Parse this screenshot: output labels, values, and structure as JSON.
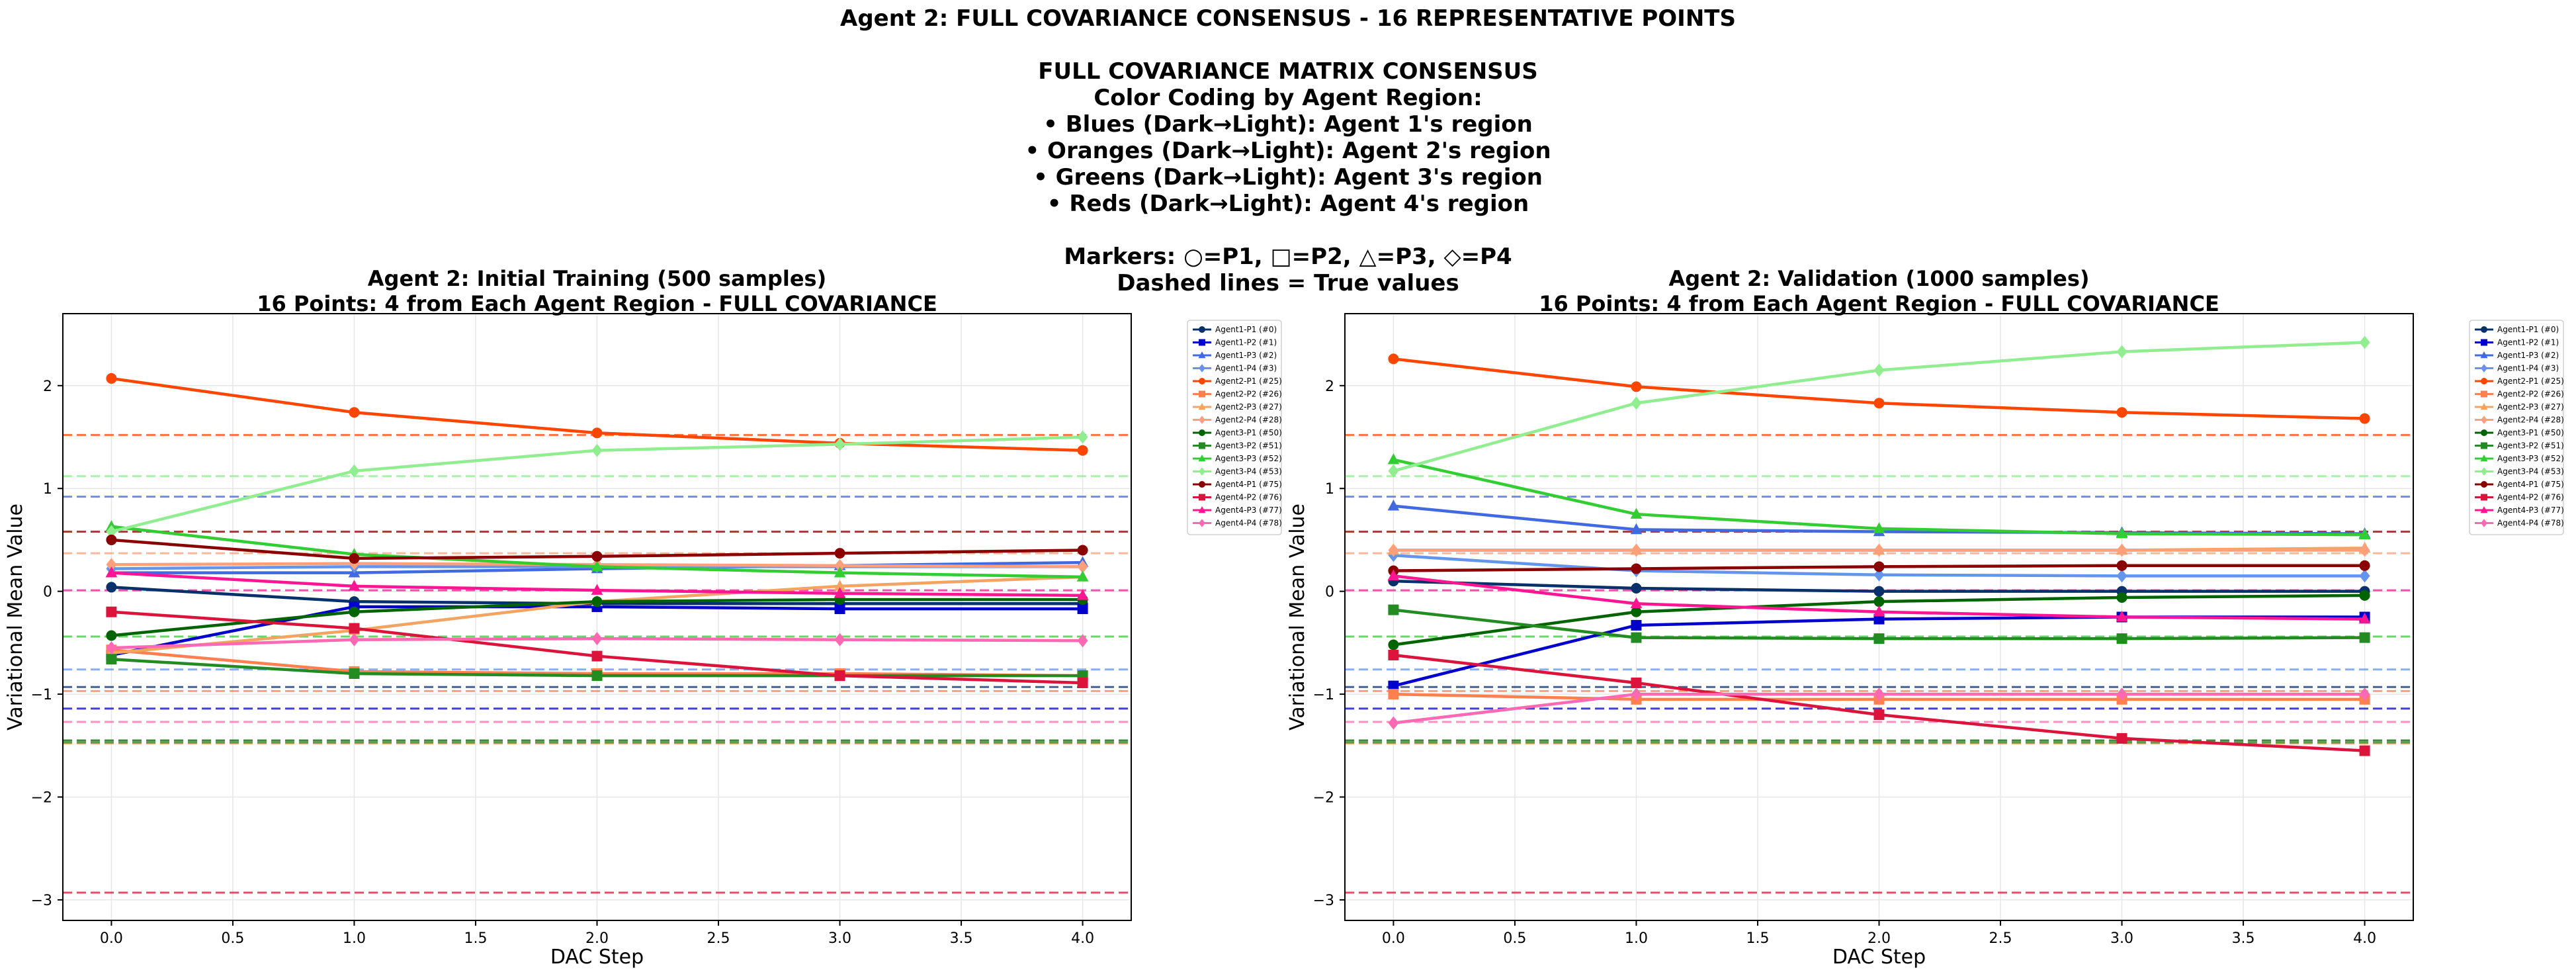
{
  "suptitle": [
    "Agent 2: FULL COVARIANCE CONSENSUS - 16 REPRESENTATIVE POINTS",
    "",
    "FULL COVARIANCE MATRIX CONSENSUS",
    "Color Coding by Agent Region:",
    "• Blues (Dark→Light): Agent 1's region",
    "• Oranges (Dark→Light): Agent 2's region",
    "• Greens (Dark→Light): Agent 3's region",
    "• Reds (Dark→Light): Agent 4's region",
    "",
    "Markers: ○=P1, □=P2, △=P3, ◇=P4",
    "Dashed lines = True values"
  ],
  "series_styles": [
    {
      "name": "Agent1-P1 (#0)",
      "color": "#08306b",
      "marker": "circle"
    },
    {
      "name": "Agent1-P2 (#1)",
      "color": "#0000cd",
      "marker": "square"
    },
    {
      "name": "Agent1-P3 (#2)",
      "color": "#4169e1",
      "marker": "triangle"
    },
    {
      "name": "Agent1-P4 (#3)",
      "color": "#6495ed",
      "marker": "diamond"
    },
    {
      "name": "Agent2-P1 (#25)",
      "color": "#ff4500",
      "marker": "circle"
    },
    {
      "name": "Agent2-P2 (#26)",
      "color": "#ff7f50",
      "marker": "square"
    },
    {
      "name": "Agent2-P3 (#27)",
      "color": "#f4a460",
      "marker": "triangle"
    },
    {
      "name": "Agent2-P4 (#28)",
      "color": "#ffa07a",
      "marker": "diamond"
    },
    {
      "name": "Agent3-P1 (#50)",
      "color": "#006400",
      "marker": "circle"
    },
    {
      "name": "Agent3-P2 (#51)",
      "color": "#228b22",
      "marker": "square"
    },
    {
      "name": "Agent3-P3 (#52)",
      "color": "#32cd32",
      "marker": "triangle"
    },
    {
      "name": "Agent3-P4 (#53)",
      "color": "#90ee90",
      "marker": "diamond"
    },
    {
      "name": "Agent4-P1 (#75)",
      "color": "#8b0000",
      "marker": "circle"
    },
    {
      "name": "Agent4-P2 (#76)",
      "color": "#dc143c",
      "marker": "square"
    },
    {
      "name": "Agent4-P3 (#77)",
      "color": "#ff1493",
      "marker": "triangle"
    },
    {
      "name": "Agent4-P4 (#78)",
      "color": "#ff69b4",
      "marker": "diamond"
    }
  ],
  "chart_data": [
    {
      "type": "line",
      "title": [
        "Agent 2: Initial Training (500 samples)",
        "16 Points: 4 from Each Agent Region - FULL COVARIANCE"
      ],
      "xlabel": "DAC Step",
      "ylabel": "Variational Mean Value",
      "xlim": [
        -0.2,
        4.2
      ],
      "ylim": [
        -3.2,
        2.7
      ],
      "xticks": [
        0.0,
        0.5,
        1.0,
        1.5,
        2.0,
        2.5,
        3.0,
        3.5,
        4.0
      ],
      "xtick_labels": [
        "0.0",
        "0.5",
        "1.0",
        "1.5",
        "2.0",
        "2.5",
        "3.0",
        "3.5",
        "4.0"
      ],
      "yticks": [
        -3,
        -2,
        -1,
        0,
        1,
        2
      ],
      "ytick_labels": [
        "−3",
        "−2",
        "−1",
        "0",
        "1",
        "2"
      ],
      "grid": true,
      "legend": "outside-right",
      "x": [
        0,
        1,
        2,
        3,
        4
      ],
      "series": [
        {
          "name": "Agent1-P1 (#0)",
          "values": [
            0.04,
            -0.1,
            -0.12,
            -0.12,
            -0.12
          ],
          "true_value": -0.93
        },
        {
          "name": "Agent1-P2 (#1)",
          "values": [
            -0.62,
            -0.15,
            -0.15,
            -0.17,
            -0.17
          ],
          "true_value": -1.14
        },
        {
          "name": "Agent1-P3 (#2)",
          "values": [
            0.18,
            0.18,
            0.22,
            0.25,
            0.28
          ],
          "true_value": 0.92
        },
        {
          "name": "Agent1-P4 (#3)",
          "values": [
            0.22,
            0.24,
            0.24,
            0.24,
            0.24
          ],
          "true_value": -0.76
        },
        {
          "name": "Agent2-P1 (#25)",
          "values": [
            2.07,
            1.74,
            1.54,
            1.44,
            1.37
          ],
          "true_value": 1.52
        },
        {
          "name": "Agent2-P2 (#26)",
          "values": [
            -0.57,
            -0.78,
            -0.8,
            -0.8,
            -0.82
          ],
          "true_value": -0.97
        },
        {
          "name": "Agent2-P3 (#27)",
          "values": [
            -0.6,
            -0.38,
            -0.1,
            0.05,
            0.14
          ],
          "true_value": -1.48
        },
        {
          "name": "Agent2-P4 (#28)",
          "values": [
            0.26,
            0.27,
            0.26,
            0.25,
            0.24
          ],
          "true_value": 0.37
        },
        {
          "name": "Agent3-P1 (#50)",
          "values": [
            -0.43,
            -0.2,
            -0.1,
            -0.08,
            -0.08
          ],
          "true_value": -1.45
        },
        {
          "name": "Agent3-P2 (#51)",
          "values": [
            -0.66,
            -0.8,
            -0.82,
            -0.82,
            -0.82
          ],
          "true_value": -1.47
        },
        {
          "name": "Agent3-P3 (#52)",
          "values": [
            0.63,
            0.36,
            0.24,
            0.18,
            0.14
          ],
          "true_value": -0.44
        },
        {
          "name": "Agent3-P4 (#53)",
          "values": [
            0.58,
            1.17,
            1.37,
            1.43,
            1.5
          ],
          "true_value": 1.12
        },
        {
          "name": "Agent4-P1 (#75)",
          "values": [
            0.5,
            0.32,
            0.34,
            0.37,
            0.4
          ],
          "true_value": 0.58
        },
        {
          "name": "Agent4-P2 (#76)",
          "values": [
            -0.2,
            -0.36,
            -0.63,
            -0.82,
            -0.89
          ],
          "true_value": -2.93
        },
        {
          "name": "Agent4-P3 (#77)",
          "values": [
            0.18,
            0.05,
            0.01,
            -0.02,
            -0.04
          ],
          "true_value": 0.01
        },
        {
          "name": "Agent4-P4 (#78)",
          "values": [
            -0.55,
            -0.47,
            -0.46,
            -0.47,
            -0.48
          ],
          "true_value": -1.27
        }
      ]
    },
    {
      "type": "line",
      "title": [
        "Agent 2: Validation (1000 samples)",
        "16 Points: 4 from Each Agent Region - FULL COVARIANCE"
      ],
      "xlabel": "DAC Step",
      "ylabel": "Variational Mean Value",
      "xlim": [
        -0.2,
        4.2
      ],
      "ylim": [
        -3.2,
        2.7
      ],
      "xticks": [
        0.0,
        0.5,
        1.0,
        1.5,
        2.0,
        2.5,
        3.0,
        3.5,
        4.0
      ],
      "xtick_labels": [
        "0.0",
        "0.5",
        "1.0",
        "1.5",
        "2.0",
        "2.5",
        "3.0",
        "3.5",
        "4.0"
      ],
      "yticks": [
        -3,
        -2,
        -1,
        0,
        1,
        2
      ],
      "ytick_labels": [
        "−3",
        "−2",
        "−1",
        "0",
        "1",
        "2"
      ],
      "grid": true,
      "legend": "outside-right",
      "x": [
        0,
        1,
        2,
        3,
        4
      ],
      "series": [
        {
          "name": "Agent1-P1 (#0)",
          "values": [
            0.1,
            0.03,
            0.0,
            0.0,
            0.0
          ],
          "true_value": -0.93
        },
        {
          "name": "Agent1-P2 (#1)",
          "values": [
            -0.92,
            -0.33,
            -0.27,
            -0.25,
            -0.25
          ],
          "true_value": -1.14
        },
        {
          "name": "Agent1-P3 (#2)",
          "values": [
            0.83,
            0.6,
            0.58,
            0.57,
            0.56
          ],
          "true_value": 0.92
        },
        {
          "name": "Agent1-P4 (#3)",
          "values": [
            0.35,
            0.2,
            0.16,
            0.15,
            0.15
          ],
          "true_value": -0.76
        },
        {
          "name": "Agent2-P1 (#25)",
          "values": [
            2.26,
            1.99,
            1.83,
            1.74,
            1.68
          ],
          "true_value": 1.52
        },
        {
          "name": "Agent2-P2 (#26)",
          "values": [
            -1.0,
            -1.05,
            -1.05,
            -1.05,
            -1.05
          ],
          "true_value": -0.97
        },
        {
          "name": "Agent2-P3 (#27)",
          "values": [
            0.4,
            0.4,
            0.4,
            0.4,
            0.42
          ],
          "true_value": -1.48
        },
        {
          "name": "Agent2-P4 (#28)",
          "values": [
            0.4,
            0.4,
            0.4,
            0.4,
            0.4
          ],
          "true_value": 0.37
        },
        {
          "name": "Agent3-P1 (#50)",
          "values": [
            -0.52,
            -0.2,
            -0.1,
            -0.06,
            -0.04
          ],
          "true_value": -1.45
        },
        {
          "name": "Agent3-P2 (#51)",
          "values": [
            -0.18,
            -0.45,
            -0.46,
            -0.46,
            -0.45
          ],
          "true_value": -1.47
        },
        {
          "name": "Agent3-P3 (#52)",
          "values": [
            1.28,
            0.75,
            0.61,
            0.56,
            0.55
          ],
          "true_value": -0.44
        },
        {
          "name": "Agent3-P4 (#53)",
          "values": [
            1.17,
            1.83,
            2.15,
            2.33,
            2.42
          ],
          "true_value": 1.12
        },
        {
          "name": "Agent4-P1 (#75)",
          "values": [
            0.2,
            0.22,
            0.24,
            0.25,
            0.25
          ],
          "true_value": 0.58
        },
        {
          "name": "Agent4-P2 (#76)",
          "values": [
            -0.62,
            -0.89,
            -1.2,
            -1.43,
            -1.55
          ],
          "true_value": -2.93
        },
        {
          "name": "Agent4-P3 (#77)",
          "values": [
            0.15,
            -0.12,
            -0.2,
            -0.25,
            -0.27
          ],
          "true_value": 0.01
        },
        {
          "name": "Agent4-P4 (#78)",
          "values": [
            -1.28,
            -1.0,
            -1.0,
            -1.0,
            -1.0
          ],
          "true_value": -1.27
        }
      ]
    }
  ]
}
